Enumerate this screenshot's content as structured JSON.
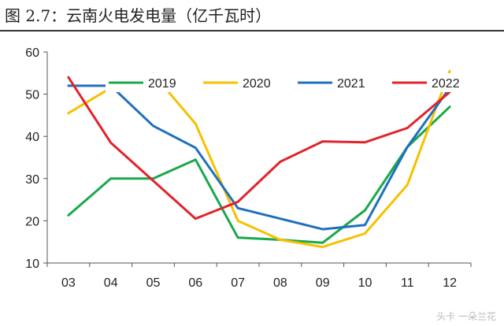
{
  "figure_title": "图 2.7：云南火电发电量（亿千瓦时）",
  "watermark": "头卡 一朵兰花",
  "chart_data": {
    "type": "line",
    "title": "图 2.7：云南火电发电量（亿千瓦时）",
    "xlabel": "",
    "ylabel": "",
    "categories": [
      "03",
      "04",
      "05",
      "06",
      "07",
      "08",
      "09",
      "10",
      "11",
      "12"
    ],
    "ylim": [
      10,
      60
    ],
    "yticks": [
      10,
      20,
      30,
      40,
      50,
      60
    ],
    "grid": false,
    "legend_position": "top-center",
    "series": [
      {
        "name": "2019",
        "color": "#1aa84a",
        "values": [
          21.3,
          30.0,
          30.0,
          34.5,
          16.0,
          15.5,
          14.8,
          22.5,
          37.5,
          47.0
        ]
      },
      {
        "name": "2020",
        "color": "#f7c000",
        "values": [
          45.5,
          51.5,
          54.8,
          43.0,
          20.0,
          15.5,
          13.8,
          17.0,
          28.5,
          55.5
        ]
      },
      {
        "name": "2021",
        "color": "#1f6fbf",
        "values": [
          52.0,
          52.0,
          42.5,
          37.3,
          23.0,
          20.5,
          18.0,
          19.0,
          37.5,
          51.5
        ]
      },
      {
        "name": "2022",
        "color": "#e0242a",
        "values": [
          54.0,
          38.5,
          29.5,
          20.5,
          24.5,
          34.0,
          38.8,
          38.6,
          42.0,
          50.5
        ]
      }
    ]
  }
}
